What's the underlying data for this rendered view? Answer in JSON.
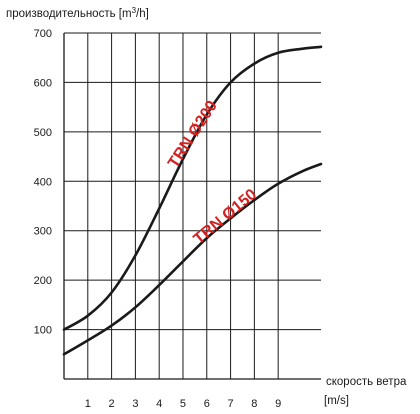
{
  "chart_data": {
    "type": "line",
    "ylabel_main": "производительность [m",
    "ylabel_sup": "3",
    "ylabel_tail": "/h]",
    "xlabel": "скорость ветра",
    "xunit": "[m/s]",
    "xlim": [
      0,
      10.8
    ],
    "ylim": [
      0,
      700
    ],
    "x_ticks": [
      1,
      2,
      3,
      4,
      5,
      6,
      7,
      8,
      9
    ],
    "y_ticks": [
      100,
      200,
      300,
      400,
      500,
      600,
      700
    ],
    "grid": true,
    "series": [
      {
        "name": "TRN Ø200",
        "x": [
          0,
          1,
          2,
          3,
          4,
          5,
          6,
          7,
          8,
          9,
          10,
          10.8
        ],
        "y": [
          100,
          128,
          175,
          250,
          345,
          445,
          535,
          600,
          638,
          660,
          668,
          672
        ]
      },
      {
        "name": "TRN Ø150",
        "x": [
          0,
          1,
          2,
          3,
          4,
          5,
          6,
          7,
          8,
          9,
          10,
          10.8
        ],
        "y": [
          50,
          78,
          108,
          145,
          190,
          238,
          285,
          325,
          362,
          395,
          420,
          435
        ]
      }
    ],
    "colors": {
      "curve": "#1a1a1a",
      "label": "#d42020",
      "grid": "#1a1a1a"
    }
  }
}
